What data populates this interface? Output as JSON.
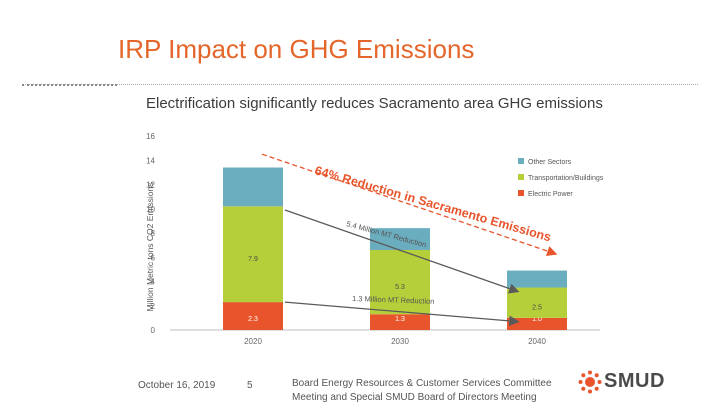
{
  "slide": {
    "title": "IRP Impact on GHG Emissions",
    "subtitle": "Electrification significantly reduces Sacramento area GHG emissions"
  },
  "footer": {
    "date": "October 16, 2019",
    "page": "5",
    "meeting_line1": "Board Energy Resources & Customer Services Committee",
    "meeting_line2": "Meeting and Special SMUD Board of Directors Meeting",
    "logo_text": "SMUD",
    "logo_mark": "SMUD sun logo"
  },
  "colors": {
    "title": "#e4662b",
    "electric": "#e8552c",
    "transport": "#b5cf3a",
    "other": "#6aadbf",
    "arrow_red": "#e8552c",
    "arrow_gray": "#5a5a5a"
  },
  "chart_data": {
    "type": "bar",
    "stacked": true,
    "categories": [
      "2020",
      "2030",
      "2040"
    ],
    "series": [
      {
        "name": "Electric Power",
        "values": [
          2.3,
          1.3,
          1.0
        ],
        "labels": [
          "2.3",
          "1.3",
          "1.0"
        ],
        "color": "#e8552c"
      },
      {
        "name": "Transportation/Buildings",
        "values": [
          7.9,
          5.3,
          2.5
        ],
        "labels": [
          "7.9",
          "5.3",
          "2.5"
        ],
        "color": "#b5cf3a"
      },
      {
        "name": "Other Sectors",
        "values": [
          3.2,
          1.8,
          1.4
        ],
        "labels": [
          "",
          "",
          ""
        ],
        "color": "#6aadbf"
      }
    ],
    "legend_order": [
      "Other Sectors",
      "Transportation/Buildings",
      "Electric Power"
    ],
    "legend_position": "top-right",
    "ylabel": "Million Metric tons CO2 Emissions",
    "ylim": [
      0,
      16
    ],
    "yticks": [
      0,
      2,
      4,
      6,
      8,
      10,
      12,
      14,
      16
    ],
    "ytick_labels": [
      "0",
      "2",
      "4",
      "6",
      "8",
      "10",
      "12",
      "14",
      "16"
    ],
    "gridlines": false,
    "annotations": {
      "total_reduction": "64% Reduction in Sacramento Emissions",
      "transport_reduction": "5.4 Million MT Reduction",
      "electric_reduction": "1.3 Million MT Reduction"
    }
  }
}
